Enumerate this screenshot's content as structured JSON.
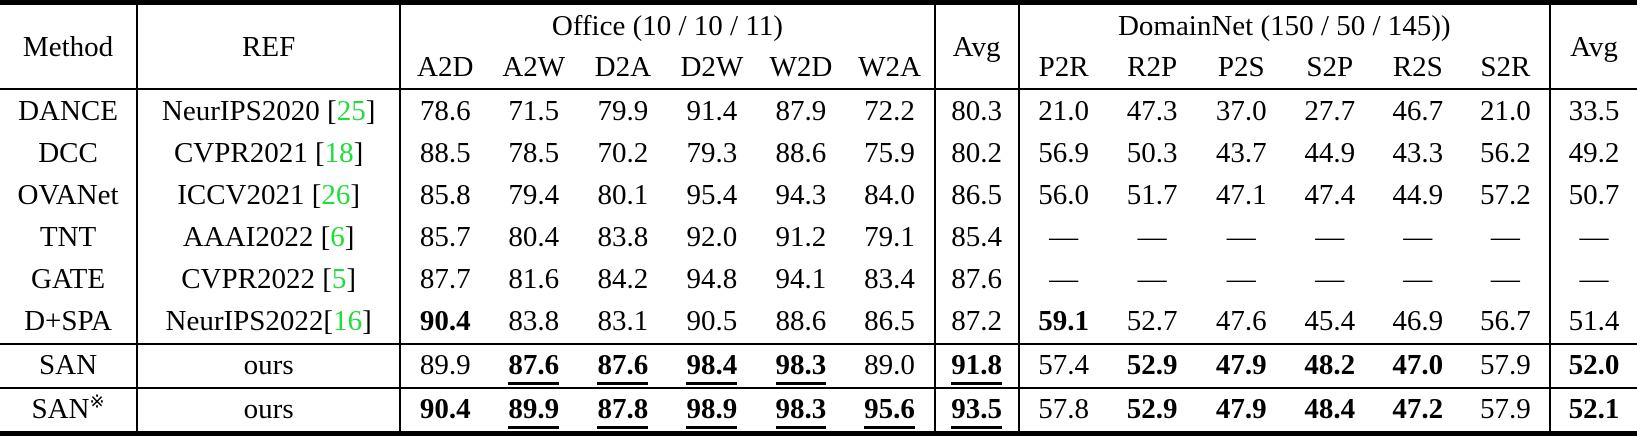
{
  "colors": {
    "citation_green": "#1fdd3b",
    "text": "#000000",
    "background": "#ffffff"
  },
  "header": {
    "method": "Method",
    "ref": "REF",
    "office_title": "Office (10 / 10 / 11)",
    "domainnet_title": "DomainNet (150 / 50 / 145))",
    "avg_label": "Avg",
    "office_cols": [
      "A2D",
      "A2W",
      "D2A",
      "D2W",
      "W2D",
      "W2A"
    ],
    "domainnet_cols": [
      "P2R",
      "R2P",
      "P2S",
      "S2P",
      "R2S",
      "S2R"
    ]
  },
  "table": {
    "rows": [
      {
        "method": {
          "name": "DANCE",
          "sup": ""
        },
        "ref": {
          "pre": "NeurIPS2020 [",
          "cite": "25",
          "post": "]"
        },
        "office": [
          [
            "78.6",
            ""
          ],
          [
            "71.5",
            ""
          ],
          [
            "79.9",
            ""
          ],
          [
            "91.4",
            ""
          ],
          [
            "87.9",
            ""
          ],
          [
            "72.2",
            ""
          ]
        ],
        "office_avg": [
          "80.3",
          ""
        ],
        "domainnet": [
          [
            "21.0",
            ""
          ],
          [
            "47.3",
            ""
          ],
          [
            "37.0",
            ""
          ],
          [
            "27.7",
            ""
          ],
          [
            "46.7",
            ""
          ],
          [
            "21.0",
            ""
          ]
        ],
        "domainnet_avg": [
          "33.5",
          ""
        ],
        "section_start": false
      },
      {
        "method": {
          "name": "DCC",
          "sup": ""
        },
        "ref": {
          "pre": "CVPR2021 [",
          "cite": "18",
          "post": "]"
        },
        "office": [
          [
            "88.5",
            ""
          ],
          [
            "78.5",
            ""
          ],
          [
            "70.2",
            ""
          ],
          [
            "79.3",
            ""
          ],
          [
            "88.6",
            ""
          ],
          [
            "75.9",
            ""
          ]
        ],
        "office_avg": [
          "80.2",
          ""
        ],
        "domainnet": [
          [
            "56.9",
            ""
          ],
          [
            "50.3",
            ""
          ],
          [
            "43.7",
            ""
          ],
          [
            "44.9",
            ""
          ],
          [
            "43.3",
            ""
          ],
          [
            "56.2",
            ""
          ]
        ],
        "domainnet_avg": [
          "49.2",
          ""
        ],
        "section_start": false
      },
      {
        "method": {
          "name": "OVANet",
          "sup": ""
        },
        "ref": {
          "pre": "ICCV2021 [",
          "cite": "26",
          "post": "]"
        },
        "office": [
          [
            "85.8",
            ""
          ],
          [
            "79.4",
            ""
          ],
          [
            "80.1",
            ""
          ],
          [
            "95.4",
            ""
          ],
          [
            "94.3",
            ""
          ],
          [
            "84.0",
            ""
          ]
        ],
        "office_avg": [
          "86.5",
          ""
        ],
        "domainnet": [
          [
            "56.0",
            ""
          ],
          [
            "51.7",
            ""
          ],
          [
            "47.1",
            ""
          ],
          [
            "47.4",
            ""
          ],
          [
            "44.9",
            ""
          ],
          [
            "57.2",
            ""
          ]
        ],
        "domainnet_avg": [
          "50.7",
          ""
        ],
        "section_start": false
      },
      {
        "method": {
          "name": "TNT",
          "sup": ""
        },
        "ref": {
          "pre": "AAAI2022 [",
          "cite": "6",
          "post": "]"
        },
        "office": [
          [
            "85.7",
            ""
          ],
          [
            "80.4",
            ""
          ],
          [
            "83.8",
            ""
          ],
          [
            "92.0",
            ""
          ],
          [
            "91.2",
            ""
          ],
          [
            "79.1",
            ""
          ]
        ],
        "office_avg": [
          "85.4",
          ""
        ],
        "domainnet": [
          [
            "—",
            ""
          ],
          [
            "—",
            ""
          ],
          [
            "—",
            ""
          ],
          [
            "—",
            ""
          ],
          [
            "—",
            ""
          ],
          [
            "—",
            ""
          ]
        ],
        "domainnet_avg": [
          "—",
          ""
        ],
        "section_start": false
      },
      {
        "method": {
          "name": "GATE",
          "sup": ""
        },
        "ref": {
          "pre": "CVPR2022 [",
          "cite": "5",
          "post": "]"
        },
        "office": [
          [
            "87.7",
            ""
          ],
          [
            "81.6",
            ""
          ],
          [
            "84.2",
            ""
          ],
          [
            "94.8",
            ""
          ],
          [
            "94.1",
            ""
          ],
          [
            "83.4",
            ""
          ]
        ],
        "office_avg": [
          "87.6",
          ""
        ],
        "domainnet": [
          [
            "—",
            ""
          ],
          [
            "—",
            ""
          ],
          [
            "—",
            ""
          ],
          [
            "—",
            ""
          ],
          [
            "—",
            ""
          ],
          [
            "—",
            ""
          ]
        ],
        "domainnet_avg": [
          "—",
          ""
        ],
        "section_start": false
      },
      {
        "method": {
          "name": "D+SPA",
          "sup": ""
        },
        "ref": {
          "pre": "NeurIPS2022[",
          "cite": "16",
          "post": "]"
        },
        "office": [
          [
            "90.4",
            "b"
          ],
          [
            "83.8",
            ""
          ],
          [
            "83.1",
            ""
          ],
          [
            "90.5",
            ""
          ],
          [
            "88.6",
            ""
          ],
          [
            "86.5",
            ""
          ]
        ],
        "office_avg": [
          "87.2",
          ""
        ],
        "domainnet": [
          [
            "59.1",
            "b"
          ],
          [
            "52.7",
            ""
          ],
          [
            "47.6",
            ""
          ],
          [
            "45.4",
            ""
          ],
          [
            "46.9",
            ""
          ],
          [
            "56.7",
            ""
          ]
        ],
        "domainnet_avg": [
          "51.4",
          ""
        ],
        "section_start": false
      },
      {
        "method": {
          "name": "SAN",
          "sup": ""
        },
        "ref": {
          "pre": "ours",
          "cite": "",
          "post": ""
        },
        "office": [
          [
            "89.9",
            ""
          ],
          [
            "87.6",
            "bu"
          ],
          [
            "87.6",
            "bu"
          ],
          [
            "98.4",
            "bu"
          ],
          [
            "98.3",
            "bu"
          ],
          [
            "89.0",
            ""
          ]
        ],
        "office_avg": [
          "91.8",
          "bu"
        ],
        "domainnet": [
          [
            "57.4",
            ""
          ],
          [
            "52.9",
            "b"
          ],
          [
            "47.9",
            "b"
          ],
          [
            "48.2",
            "b"
          ],
          [
            "47.0",
            "b"
          ],
          [
            "57.9",
            ""
          ]
        ],
        "domainnet_avg": [
          "52.0",
          "b"
        ],
        "section_start": true
      },
      {
        "method": {
          "name": "SAN",
          "sup": "※"
        },
        "ref": {
          "pre": "ours",
          "cite": "",
          "post": ""
        },
        "office": [
          [
            "90.4",
            "b"
          ],
          [
            "89.9",
            "bu"
          ],
          [
            "87.8",
            "bu"
          ],
          [
            "98.9",
            "bu"
          ],
          [
            "98.3",
            "bu"
          ],
          [
            "95.6",
            "bu"
          ]
        ],
        "office_avg": [
          "93.5",
          "bu"
        ],
        "domainnet": [
          [
            "57.8",
            ""
          ],
          [
            "52.9",
            "b"
          ],
          [
            "47.9",
            "b"
          ],
          [
            "48.4",
            "b"
          ],
          [
            "47.2",
            "b"
          ],
          [
            "57.9",
            ""
          ]
        ],
        "domainnet_avg": [
          "52.1",
          "b"
        ],
        "section_start": true
      }
    ]
  }
}
